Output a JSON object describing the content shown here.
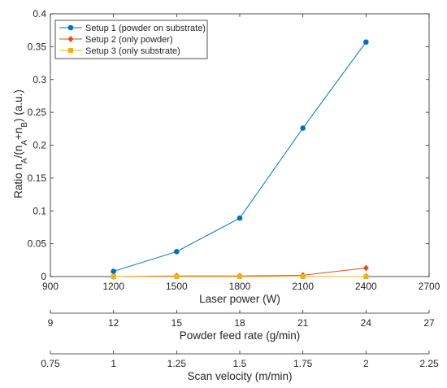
{
  "chart_data": {
    "type": "line",
    "title": "",
    "xlabel": "Laser power (W)",
    "ylabel": {
      "base": "Ratio n",
      "sub_a": "A",
      "mid": "/(n",
      "sub_a2": "A",
      "plus": "+n",
      "sub_b": "B",
      "end": ") (a.u.)"
    },
    "x": [
      1200,
      1500,
      1800,
      2100,
      2400
    ],
    "xlim": [
      900,
      2700
    ],
    "xticks": [
      "900",
      "1200",
      "1500",
      "1800",
      "2100",
      "2400",
      "2700"
    ],
    "ylim": [
      0,
      0.4
    ],
    "yticks": [
      "0",
      "0.05",
      "0.1",
      "0.15",
      "0.2",
      "0.25",
      "0.3",
      "0.35",
      "0.4"
    ],
    "grid": false,
    "legend_position": "top-left",
    "series": [
      {
        "name": "Setup 1 (powder on substrate)",
        "color": "#0072BD",
        "marker": "circle",
        "values": [
          0.008,
          0.038,
          0.089,
          0.226,
          0.357
        ]
      },
      {
        "name": "Setup 2 (only powder)",
        "color": "#D95319",
        "marker": "diamond",
        "values": [
          0.0,
          0.001,
          0.001,
          0.002,
          0.013
        ]
      },
      {
        "name": "Setup 3 (only substrate)",
        "color": "#EDB120",
        "marker": "square",
        "values": [
          0.0,
          0.0,
          0.0,
          0.0,
          0.0
        ]
      }
    ],
    "secondary_axes": [
      {
        "label": "Powder feed rate (g/min)",
        "ticks": [
          "9",
          "12",
          "15",
          "18",
          "21",
          "24",
          "27"
        ]
      },
      {
        "label": "Scan velocity (m/min)",
        "ticks": [
          "0.75",
          "1",
          "1.25",
          "1.5",
          "1.75",
          "2",
          "2.25"
        ]
      }
    ]
  }
}
